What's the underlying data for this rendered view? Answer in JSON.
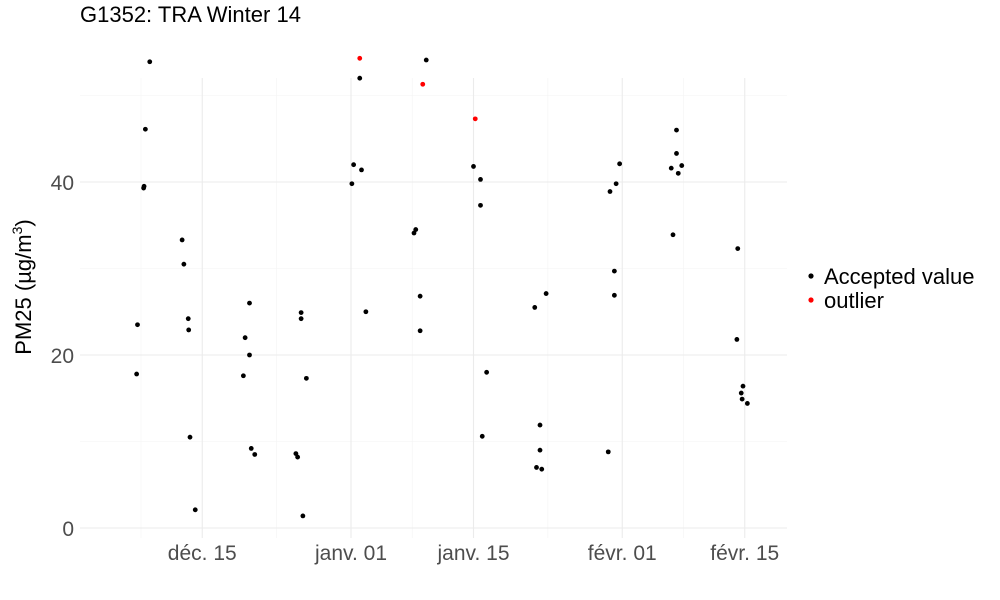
{
  "chart_data": {
    "type": "scatter",
    "title": "G1352: TRA Winter 14",
    "xlabel": "",
    "ylabel": "PM25 (µg/m³)",
    "ylabel_main": "PM25 (",
    "ylabel_unit": "µg/m",
    "ylabel_exp": "3",
    "ylabel_close": ")",
    "x_axis": {
      "type": "date",
      "ticks": [
        {
          "day": 15,
          "label": "déc. 15"
        },
        {
          "day": 32,
          "label": "janv. 01"
        },
        {
          "day": 46,
          "label": "janv. 15"
        },
        {
          "day": 63,
          "label": "févr. 01"
        },
        {
          "day": 77,
          "label": "févr. 15"
        }
      ],
      "note": "day = days since 2014-12-01 (day 1 = Dec 1)"
    },
    "y_axis": {
      "ticks": [
        0,
        20,
        40
      ],
      "minor_ticks": [
        10,
        30,
        50
      ]
    },
    "legend": {
      "position": "right",
      "entries": [
        {
          "label": "Accepted value",
          "color": "#000000"
        },
        {
          "label": "outlier",
          "color": "#ff0000"
        }
      ]
    },
    "series": [
      {
        "name": "Accepted value",
        "color": "#000000",
        "points": [
          {
            "x": 7.5,
            "y": 17.8
          },
          {
            "x": 7.6,
            "y": 23.5
          },
          {
            "x": 8.3,
            "y": 39.3
          },
          {
            "x": 8.35,
            "y": 39.5
          },
          {
            "x": 8.5,
            "y": 46.1
          },
          {
            "x": 9.0,
            "y": 53.9
          },
          {
            "x": 12.7,
            "y": 33.3
          },
          {
            "x": 12.9,
            "y": 30.5
          },
          {
            "x": 13.4,
            "y": 24.2
          },
          {
            "x": 13.45,
            "y": 22.9
          },
          {
            "x": 13.6,
            "y": 10.5
          },
          {
            "x": 14.2,
            "y": 2.1
          },
          {
            "x": 19.7,
            "y": 17.6
          },
          {
            "x": 19.9,
            "y": 22.0
          },
          {
            "x": 20.4,
            "y": 26.0
          },
          {
            "x": 20.4,
            "y": 20.0
          },
          {
            "x": 20.6,
            "y": 9.2
          },
          {
            "x": 21.0,
            "y": 8.5
          },
          {
            "x": 25.7,
            "y": 8.6
          },
          {
            "x": 25.9,
            "y": 8.2
          },
          {
            "x": 26.3,
            "y": 24.9
          },
          {
            "x": 26.3,
            "y": 24.2
          },
          {
            "x": 26.5,
            "y": 1.4
          },
          {
            "x": 26.9,
            "y": 17.3
          },
          {
            "x": 32.1,
            "y": 39.8
          },
          {
            "x": 32.3,
            "y": 42.0
          },
          {
            "x": 33.0,
            "y": 52.0
          },
          {
            "x": 33.2,
            "y": 41.4
          },
          {
            "x": 33.7,
            "y": 25.0
          },
          {
            "x": 39.2,
            "y": 34.1
          },
          {
            "x": 39.4,
            "y": 34.5
          },
          {
            "x": 39.9,
            "y": 26.8
          },
          {
            "x": 39.9,
            "y": 22.8
          },
          {
            "x": 40.6,
            "y": 54.1
          },
          {
            "x": 46.0,
            "y": 41.8
          },
          {
            "x": 46.8,
            "y": 40.3
          },
          {
            "x": 46.8,
            "y": 37.3
          },
          {
            "x": 47.0,
            "y": 10.6
          },
          {
            "x": 47.5,
            "y": 18.0
          },
          {
            "x": 53.0,
            "y": 25.5
          },
          {
            "x": 53.2,
            "y": 7.0
          },
          {
            "x": 53.6,
            "y": 11.9
          },
          {
            "x": 53.6,
            "y": 9.0
          },
          {
            "x": 53.8,
            "y": 6.8
          },
          {
            "x": 54.3,
            "y": 27.1
          },
          {
            "x": 61.4,
            "y": 8.8
          },
          {
            "x": 61.6,
            "y": 38.9
          },
          {
            "x": 62.1,
            "y": 29.7
          },
          {
            "x": 62.1,
            "y": 26.9
          },
          {
            "x": 62.3,
            "y": 39.8
          },
          {
            "x": 62.7,
            "y": 42.1
          },
          {
            "x": 68.6,
            "y": 41.6
          },
          {
            "x": 68.8,
            "y": 33.9
          },
          {
            "x": 69.2,
            "y": 46.0
          },
          {
            "x": 69.2,
            "y": 43.3
          },
          {
            "x": 69.4,
            "y": 41.0
          },
          {
            "x": 69.8,
            "y": 41.9
          },
          {
            "x": 76.1,
            "y": 21.8
          },
          {
            "x": 76.2,
            "y": 32.3
          },
          {
            "x": 76.6,
            "y": 15.6
          },
          {
            "x": 76.7,
            "y": 14.9
          },
          {
            "x": 76.8,
            "y": 16.4
          },
          {
            "x": 77.3,
            "y": 14.4
          }
        ]
      },
      {
        "name": "outlier",
        "color": "#ff0000",
        "points": [
          {
            "x": 33.0,
            "y": 54.3
          },
          {
            "x": 40.2,
            "y": 51.3
          },
          {
            "x": 46.2,
            "y": 47.3
          }
        ]
      }
    ]
  }
}
